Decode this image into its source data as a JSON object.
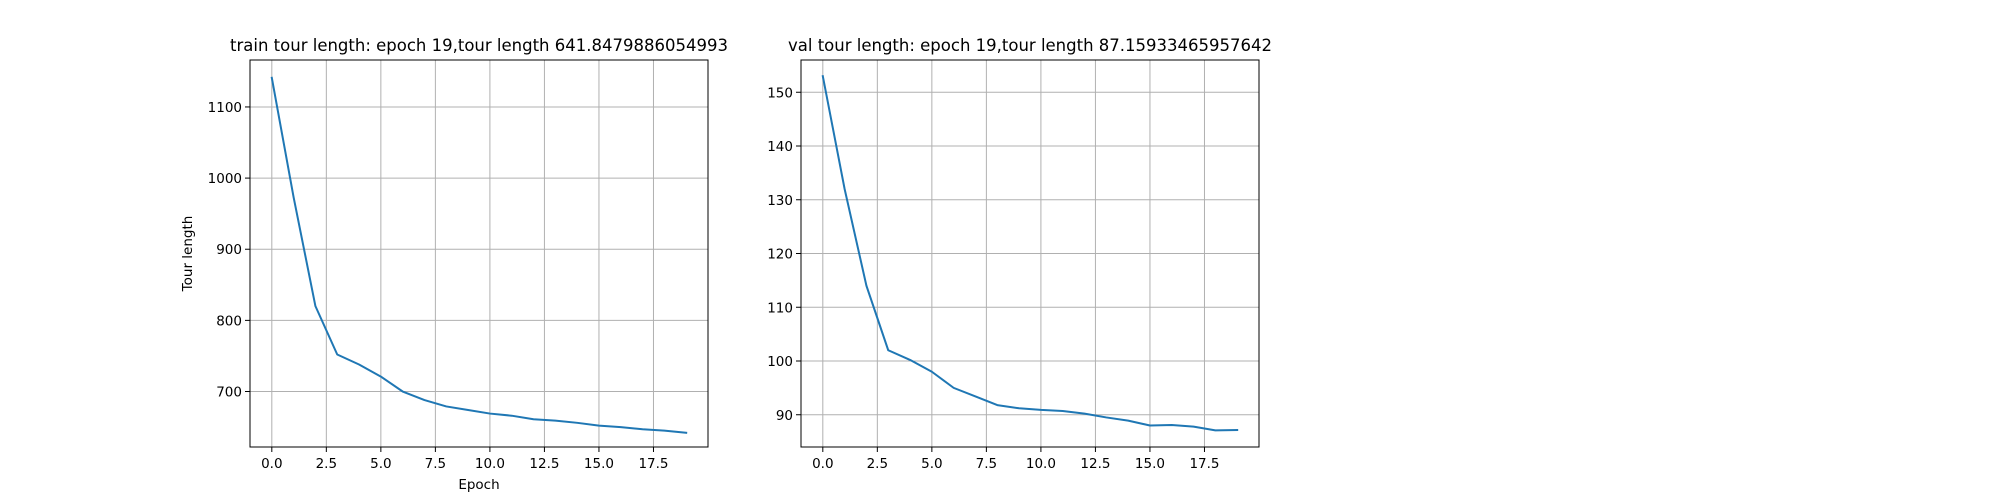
{
  "chart_data": [
    {
      "type": "line",
      "title": "train tour length: epoch 19,tour length 641.8479886054993",
      "xlabel": "Epoch",
      "ylabel": "Tour length",
      "xlim": [
        -1.0,
        20.0
      ],
      "ylim": [
        622,
        1166
      ],
      "xticks": [
        0.0,
        2.5,
        5.0,
        7.5,
        10.0,
        12.5,
        15.0,
        17.5
      ],
      "xtick_labels": [
        "0.0",
        "2.5",
        "5.0",
        "7.5",
        "10.0",
        "12.5",
        "15.0",
        "17.5"
      ],
      "yticks": [
        700,
        800,
        900,
        1000,
        1100
      ],
      "ytick_labels": [
        "700",
        "800",
        "900",
        "1000",
        "1100"
      ],
      "grid": true,
      "legend": "none",
      "series": [
        {
          "color": "#1f77b4",
          "x": [
            0,
            1,
            2,
            3,
            4,
            5,
            6,
            7,
            8,
            9,
            10,
            11,
            12,
            13,
            14,
            15,
            16,
            17,
            18,
            19
          ],
          "y": [
            1141,
            973,
            820,
            752,
            738,
            721,
            700,
            688,
            679,
            674,
            669,
            666,
            661,
            659,
            656,
            652,
            650,
            647,
            645,
            642
          ]
        }
      ]
    },
    {
      "type": "line",
      "title": "val tour length: epoch 19,tour length 87.15933465957642",
      "xlabel": "",
      "ylabel": "",
      "xlim": [
        -1.0,
        20.0
      ],
      "ylim": [
        84,
        156
      ],
      "xticks": [
        0.0,
        2.5,
        5.0,
        7.5,
        10.0,
        12.5,
        15.0,
        17.5
      ],
      "xtick_labels": [
        "0.0",
        "2.5",
        "5.0",
        "7.5",
        "10.0",
        "12.5",
        "15.0",
        "17.5"
      ],
      "yticks": [
        90,
        100,
        110,
        120,
        130,
        140,
        150
      ],
      "ytick_labels": [
        "90",
        "100",
        "110",
        "120",
        "130",
        "140",
        "150"
      ],
      "grid": true,
      "legend": "none",
      "series": [
        {
          "color": "#1f77b4",
          "x": [
            0,
            1,
            2,
            3,
            4,
            5,
            6,
            7,
            8,
            9,
            10,
            11,
            12,
            13,
            14,
            15,
            16,
            17,
            18,
            19
          ],
          "y": [
            153,
            132,
            114,
            102,
            100.2,
            98,
            95,
            93.4,
            91.8,
            91.2,
            90.9,
            90.7,
            90.2,
            89.5,
            88.9,
            88.0,
            88.1,
            87.8,
            87.1,
            87.16
          ]
        }
      ]
    }
  ]
}
